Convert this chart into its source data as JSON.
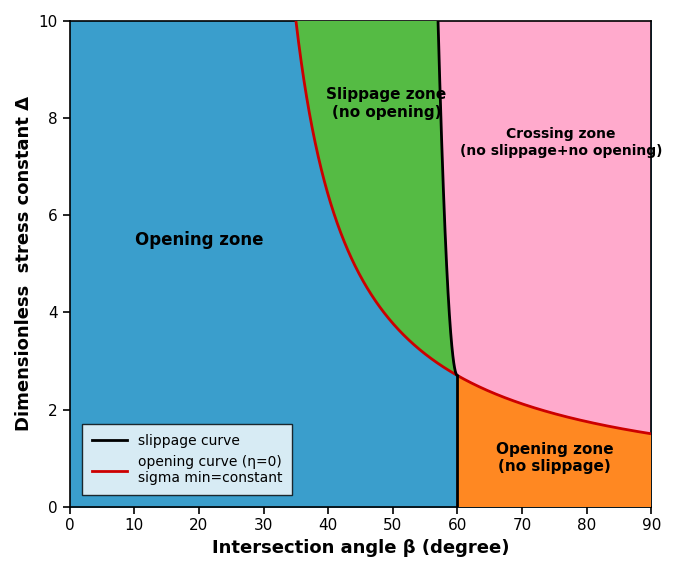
{
  "xlabel": "Intersection angle β (degree)",
  "ylabel": "Dimensionless  stress constant Δ",
  "xlim": [
    0,
    90
  ],
  "ylim": [
    0,
    10
  ],
  "xticks": [
    0,
    10,
    20,
    30,
    40,
    50,
    60,
    70,
    80,
    90
  ],
  "yticks": [
    0,
    2,
    4,
    6,
    8,
    10
  ],
  "color_opening_zone": "#3a9ecc",
  "color_slippage_zone": "#55bb44",
  "color_crossing_zone": "#ffaacc",
  "color_opening_no_slippage": "#ff8822",
  "slippage_curve_color": "#000000",
  "opening_curve_color": "#cc0000",
  "label_opening_zone": "Opening zone",
  "label_slippage_zone": "Slippage zone\n(no opening)",
  "label_crossing_zone": "Crossing zone\n(no slippage+no opening)",
  "label_opening_no_slippage": "Opening zone\n(no slippage)",
  "legend_slippage": "slippage curve",
  "legend_opening": "opening curve (η=0)\nsigma min=constant",
  "oc_A": 85.87,
  "oc_B": 26.3,
  "oc_C": 0.152,
  "slip_beta0": 60.0,
  "slip_k": 1.11,
  "figsize": [
    6.85,
    5.72
  ],
  "dpi": 100
}
